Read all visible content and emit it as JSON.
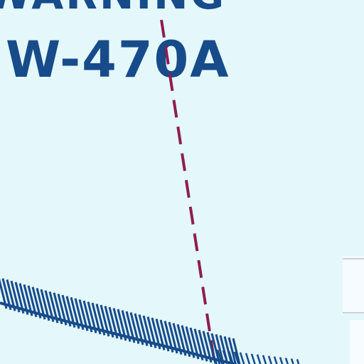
{
  "map": {
    "warning_label": "WARNING",
    "area_designator": "W-470A",
    "colors": {
      "background": "#e4f8fc",
      "label": "#174b8a",
      "boundary_dashed": "#8e1d52",
      "boundary_hatched": "#174b8a",
      "edge_marker": "#c7d1da"
    }
  }
}
